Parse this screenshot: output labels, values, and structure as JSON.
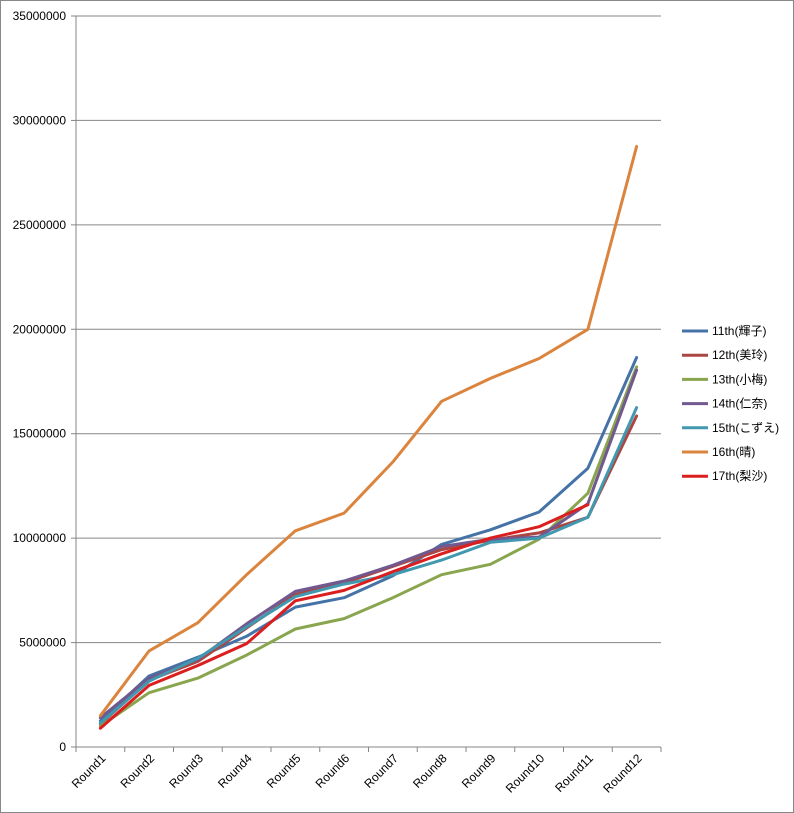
{
  "chart_data": {
    "type": "line",
    "title": "",
    "xlabel": "",
    "ylabel": "",
    "categories": [
      "Round1",
      "Round2",
      "Round3",
      "Round4",
      "Round5",
      "Round6",
      "Round7",
      "Round8",
      "Round9",
      "Round10",
      "Round11",
      "Round12"
    ],
    "ylim": [
      0,
      35000000
    ],
    "yticks": [
      0,
      5000000,
      10000000,
      15000000,
      20000000,
      25000000,
      30000000,
      35000000
    ],
    "grid": "horizontal",
    "legend_position": "right",
    "series": [
      {
        "name": "11th(輝子)",
        "color": "#4572A7",
        "values": [
          1250000,
          3400000,
          4300000,
          5300000,
          6700000,
          7150000,
          8200000,
          9700000,
          10400000,
          11250000,
          13350000,
          18650000
        ]
      },
      {
        "name": "12th(美玲)",
        "color": "#AA4643",
        "values": [
          1100000,
          3200000,
          4100000,
          5700000,
          7300000,
          7850000,
          8650000,
          9450000,
          9900000,
          10250000,
          11000000,
          15850000
        ]
      },
      {
        "name": "13th(小梅)",
        "color": "#89A54E",
        "values": [
          1000000,
          2600000,
          3300000,
          4400000,
          5650000,
          6150000,
          7150000,
          8250000,
          8750000,
          9950000,
          12150000,
          18200000
        ]
      },
      {
        "name": "14th(仁奈)",
        "color": "#71588F",
        "values": [
          1400000,
          3300000,
          4200000,
          5900000,
          7450000,
          7950000,
          8700000,
          9600000,
          9950000,
          10050000,
          11650000,
          18050000
        ]
      },
      {
        "name": "15th(こずえ)",
        "color": "#4198AF",
        "values": [
          1150000,
          3150000,
          4250000,
          5750000,
          7200000,
          7800000,
          8250000,
          8950000,
          9800000,
          10000000,
          11000000,
          16250000
        ]
      },
      {
        "name": "16th(晴)",
        "color": "#DB843D",
        "values": [
          1500000,
          4600000,
          5950000,
          8250000,
          10350000,
          11200000,
          13650000,
          16550000,
          17650000,
          18600000,
          20000000,
          28750000
        ]
      },
      {
        "name": "17th(梨沙)",
        "color": "#DB1E1E",
        "values": [
          900000,
          2950000,
          3900000,
          4950000,
          7000000,
          7500000,
          8400000,
          9250000,
          10000000,
          10550000,
          11600000,
          null
        ]
      }
    ]
  }
}
